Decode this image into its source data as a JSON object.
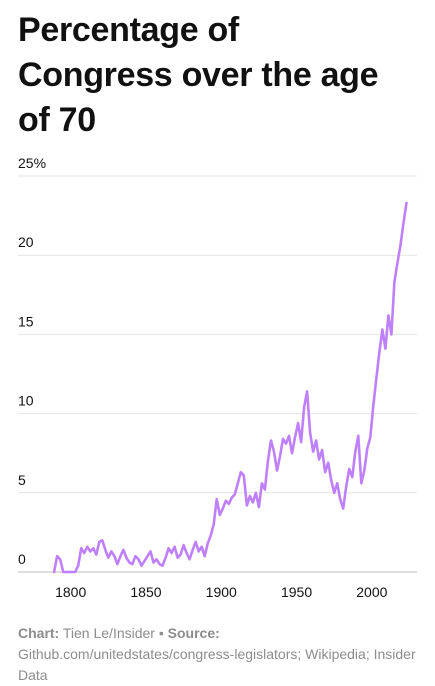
{
  "chart_data": {
    "type": "line",
    "title": "Percentage of Congress over the age of 70",
    "title_lines": [
      "Percentage of",
      "Congress over the age",
      "of 70"
    ],
    "xlabel": "",
    "ylabel": "",
    "xlim": [
      1765,
      2030
    ],
    "ylim": [
      0,
      25
    ],
    "x_ticks": [
      1800,
      1850,
      1900,
      1950,
      2000
    ],
    "y_ticks": [
      0,
      5,
      10,
      15,
      20,
      25
    ],
    "y_tick_labels": [
      "0",
      "5",
      "10",
      "15",
      "20",
      "25%"
    ],
    "grid": "horizontal",
    "line_color": "#bf80ff",
    "series": [
      {
        "x": [
          1789,
          1791,
          1793,
          1795,
          1803,
          1805,
          1807,
          1809,
          1811,
          1813,
          1815,
          1817,
          1819,
          1821,
          1823,
          1825,
          1827,
          1829,
          1831,
          1833,
          1835,
          1837,
          1839,
          1841,
          1843,
          1845,
          1847,
          1849,
          1851,
          1853,
          1855,
          1857,
          1859,
          1861,
          1863,
          1865,
          1867,
          1869,
          1871,
          1873,
          1875,
          1877,
          1879,
          1881,
          1883,
          1885,
          1887,
          1889,
          1891,
          1893,
          1895,
          1897,
          1899,
          1901,
          1903,
          1905,
          1907,
          1909,
          1911,
          1913,
          1915,
          1917,
          1919,
          1921,
          1923,
          1925,
          1927,
          1929,
          1931,
          1933,
          1935,
          1937,
          1939,
          1941,
          1943,
          1945,
          1947,
          1949,
          1951,
          1953,
          1955,
          1957,
          1959,
          1961,
          1963,
          1965,
          1967,
          1969,
          1971,
          1973,
          1975,
          1977,
          1979,
          1981,
          1983,
          1985,
          1987,
          1989,
          1991,
          1993,
          1995,
          1997,
          1999,
          2001,
          2003,
          2005,
          2007,
          2009,
          2011,
          2013,
          2015,
          2017,
          2019,
          2021,
          2023
        ],
        "y": [
          0.0,
          1.0,
          0.8,
          0.0,
          0.0,
          0.4,
          1.5,
          1.2,
          1.6,
          1.3,
          1.5,
          1.1,
          1.9,
          2.0,
          1.4,
          0.9,
          1.3,
          1.0,
          0.5,
          1.0,
          1.4,
          0.9,
          0.6,
          0.5,
          1.0,
          0.8,
          0.4,
          0.7,
          1.0,
          1.3,
          0.6,
          0.8,
          0.5,
          0.4,
          0.9,
          1.5,
          1.2,
          1.6,
          0.9,
          1.1,
          1.7,
          1.2,
          0.8,
          1.4,
          1.9,
          1.3,
          1.6,
          1.0,
          1.8,
          2.3,
          3.0,
          4.6,
          3.6,
          4.0,
          4.5,
          4.3,
          4.7,
          4.9,
          5.6,
          6.3,
          6.1,
          4.2,
          4.8,
          4.4,
          5.0,
          4.1,
          5.6,
          5.2,
          7.0,
          8.3,
          7.6,
          6.4,
          7.3,
          8.4,
          8.1,
          8.6,
          7.5,
          8.5,
          9.4,
          8.2,
          10.4,
          11.4,
          8.8,
          7.6,
          8.3,
          7.1,
          7.7,
          6.3,
          6.9,
          5.8,
          5.0,
          5.6,
          4.6,
          4.0,
          5.4,
          6.5,
          6.0,
          7.6,
          8.6,
          5.6,
          6.4,
          7.8,
          8.5,
          10.5,
          12.2,
          13.9,
          15.3,
          14.1,
          16.2,
          15.0,
          18.3,
          19.5,
          20.6,
          22.0,
          23.3
        ]
      }
    ]
  },
  "footer": {
    "chart_label": "Chart:",
    "chart_credit": "Tien Le/Insider",
    "bullet": "•",
    "source_label": "Source:",
    "source_text": "Github.com/unitedstates/congress-legislators; Wikipedia; Insider Data"
  }
}
